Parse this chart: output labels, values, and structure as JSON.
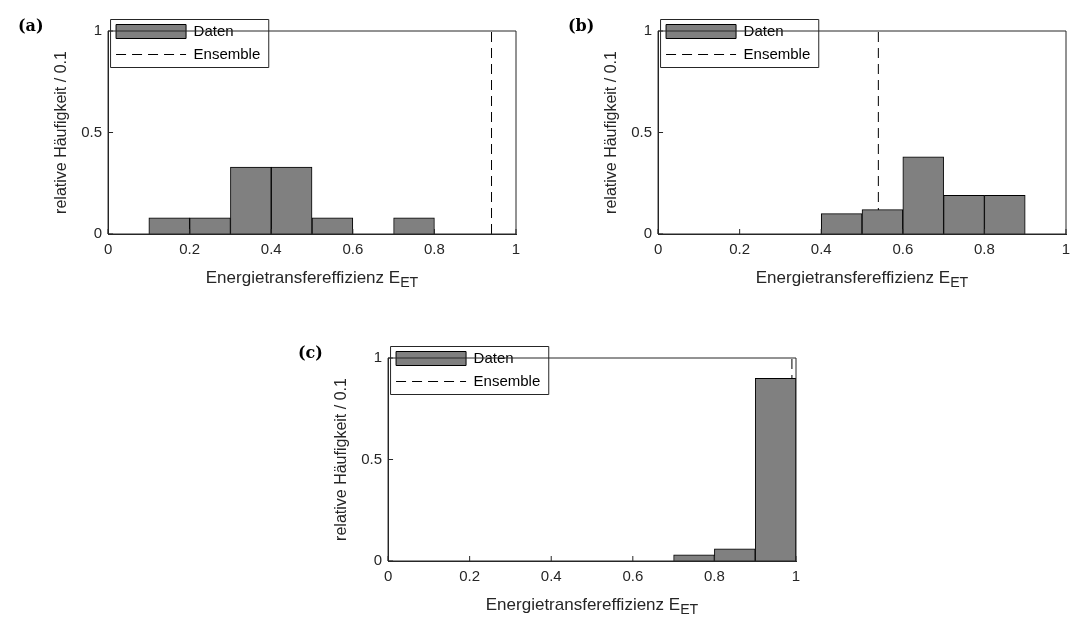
{
  "chart_data": [
    {
      "type": "histogram",
      "title": "(a)",
      "xlabel": "Energietransfereffizienz E$_{ET}$",
      "ylabel": "relative Häufigkeit / 0.1",
      "bins": [
        0,
        0.1,
        0.2,
        0.3,
        0.4,
        0.5,
        0.6,
        0.7,
        0.8,
        0.9,
        1
      ],
      "series": [
        {
          "name": "Daten",
          "color": "#808080",
          "values": [
            0,
            0.08,
            0.08,
            0.33,
            0.33,
            0.08,
            0,
            0.08,
            0,
            0
          ]
        }
      ],
      "ref_lines": [
        {
          "axis": "x",
          "value": 0.94,
          "label": "Ensemble",
          "color": "#000000",
          "line_style": "dashed"
        }
      ],
      "xlim": [
        0,
        1
      ],
      "xticks": [
        0,
        0.2,
        0.4,
        0.6,
        0.8,
        1
      ],
      "ylim": [
        0,
        1
      ],
      "yticks": [
        0,
        0.5,
        1
      ],
      "legend": "top left",
      "grid": false
    },
    {
      "type": "histogram",
      "title": "(b)",
      "xlabel": "Energietransfereffizienz E$_{ET}$",
      "ylabel": "relative Häufigkeit / 0.1",
      "bins": [
        0,
        0.1,
        0.2,
        0.3,
        0.4,
        0.5,
        0.6,
        0.7,
        0.8,
        0.9,
        1
      ],
      "series": [
        {
          "name": "Daten",
          "color": "#808080",
          "values": [
            0,
            0,
            0,
            0,
            0.1,
            0.12,
            0.38,
            0.19,
            0.19,
            0
          ]
        }
      ],
      "ref_lines": [
        {
          "axis": "x",
          "value": 0.54,
          "label": "Ensemble",
          "color": "#000000",
          "line_style": "dashed"
        }
      ],
      "xlim": [
        0,
        1
      ],
      "xticks": [
        0,
        0.2,
        0.4,
        0.6,
        0.8,
        1
      ],
      "ylim": [
        0,
        1
      ],
      "yticks": [
        0,
        0.5,
        1
      ],
      "legend": "top left",
      "grid": false
    },
    {
      "type": "histogram",
      "title": "(c)",
      "xlabel": "Energietransfereffizienz E$_{ET}$",
      "ylabel": "relative Häufigkeit / 0.1",
      "bins": [
        0,
        0.1,
        0.2,
        0.3,
        0.4,
        0.5,
        0.6,
        0.7,
        0.8,
        0.9,
        1
      ],
      "series": [
        {
          "name": "Daten",
          "color": "#808080",
          "values": [
            0,
            0,
            0,
            0,
            0,
            0,
            0,
            0.03,
            0.06,
            0.9
          ]
        }
      ],
      "ref_lines": [
        {
          "axis": "x",
          "value": 0.99,
          "label": "Ensemble",
          "color": "#000000",
          "line_style": "dashed"
        }
      ],
      "xlim": [
        0,
        1
      ],
      "xticks": [
        0,
        0.2,
        0.4,
        0.6,
        0.8,
        1
      ],
      "ylim": [
        0,
        1
      ],
      "yticks": [
        0,
        0.5,
        1
      ],
      "legend": "top left",
      "grid": false
    }
  ]
}
